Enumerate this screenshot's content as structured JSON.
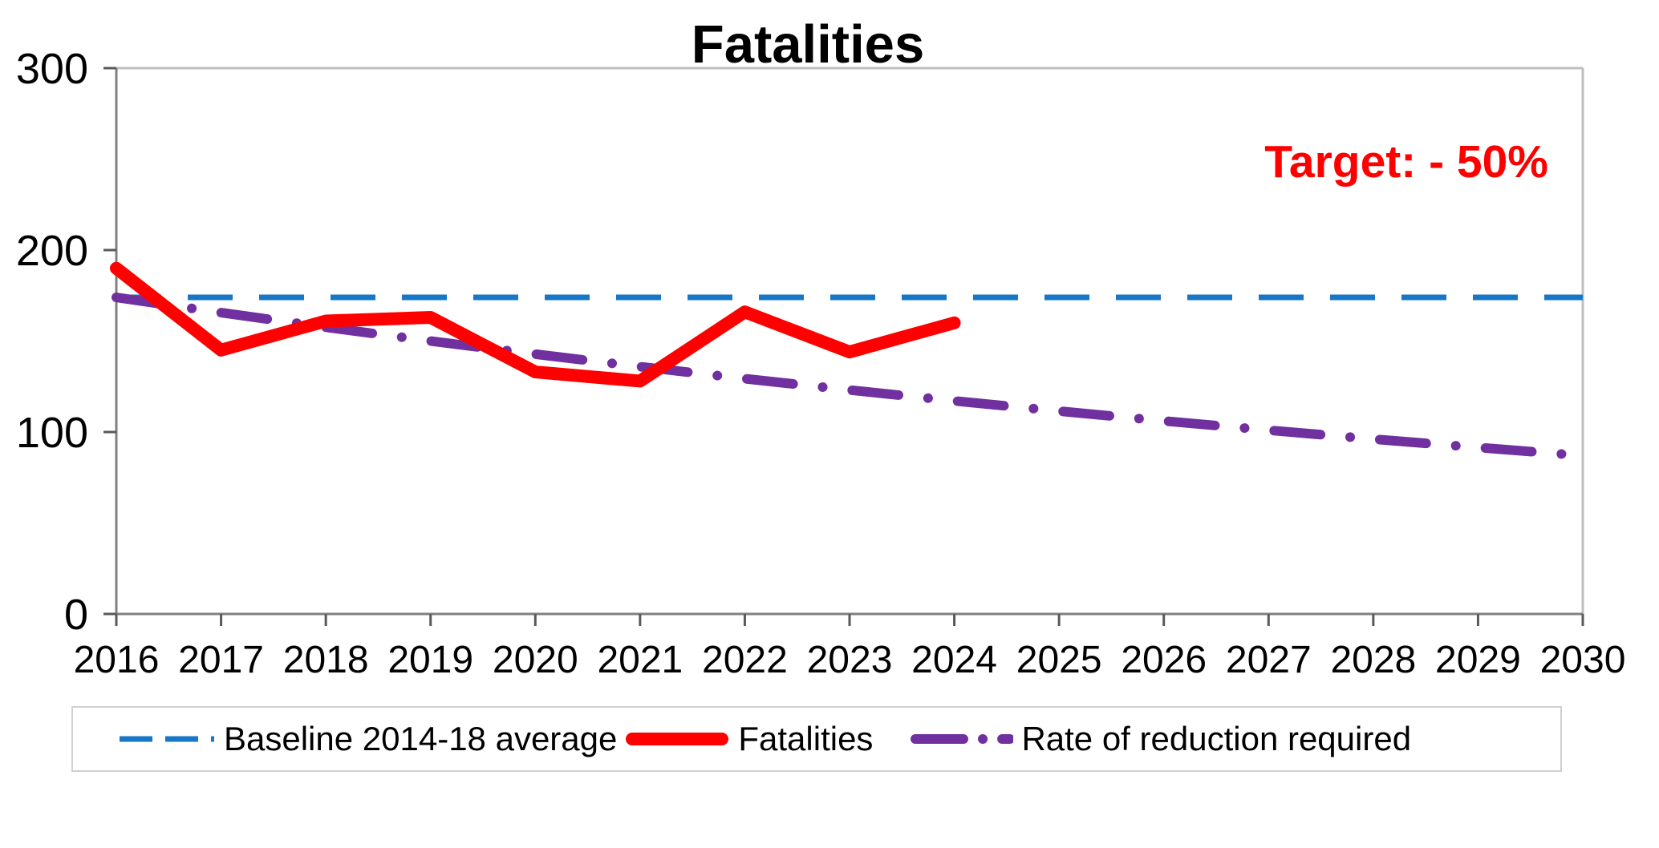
{
  "chart_data": {
    "type": "line",
    "title": "Fatalities",
    "annotation": {
      "text": "Target: - 50%",
      "color": "#FF0000"
    },
    "x": [
      2016,
      2017,
      2018,
      2019,
      2020,
      2021,
      2022,
      2023,
      2024,
      2025,
      2026,
      2027,
      2028,
      2029,
      2030
    ],
    "ylim": [
      0,
      300
    ],
    "yticks": [
      0,
      100,
      200,
      300
    ],
    "grid": false,
    "legend_position": "bottom",
    "series": [
      {
        "name": "Baseline 2014-18 average",
        "color": "#1777C6",
        "dash": "dashed",
        "values": [
          174,
          174,
          174,
          174,
          174,
          174,
          174,
          174,
          174,
          174,
          174,
          174,
          174,
          174,
          174
        ]
      },
      {
        "name": "Fatalities",
        "color": "#FF0000",
        "dash": "solid",
        "values": [
          190,
          145,
          161,
          163,
          133,
          128,
          166,
          144,
          160,
          null,
          null,
          null,
          null,
          null,
          null
        ]
      },
      {
        "name": "Rate of reduction required",
        "color": "#7030A0",
        "dash": "dashdot",
        "values": [
          174,
          165.6,
          157.6,
          150,
          142.8,
          135.9,
          129.3,
          123.1,
          117.1,
          111.5,
          106.1,
          101,
          96.1,
          91.5,
          87
        ]
      }
    ]
  }
}
